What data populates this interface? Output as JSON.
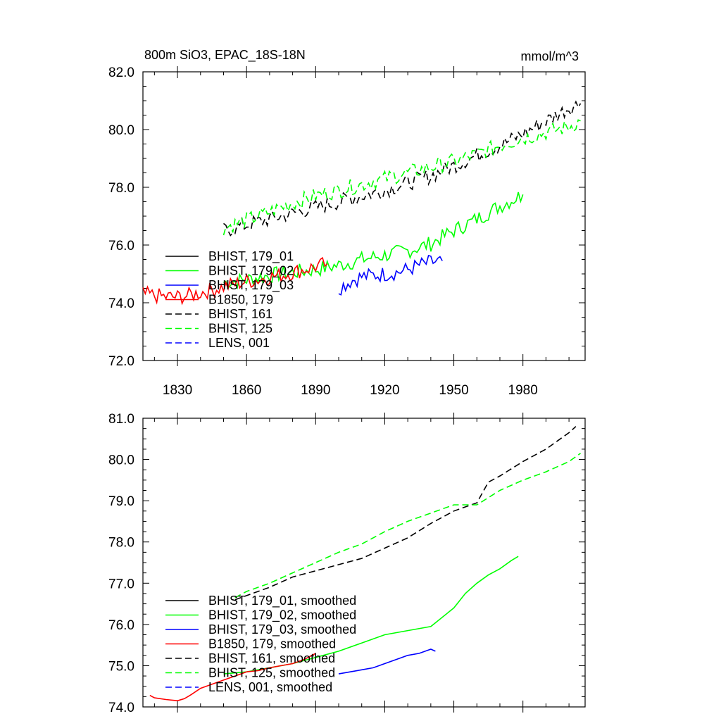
{
  "chart_data": [
    {
      "type": "line",
      "title": "800m SiO3, EPAC_18S-18N",
      "units": "mmol/m^3",
      "xlim": [
        1815,
        2007
      ],
      "ylim": [
        72,
        82
      ],
      "x_ticks": [
        1830,
        1860,
        1890,
        1920,
        1950,
        1980
      ],
      "y_ticks": [
        72,
        74,
        76,
        78,
        80,
        82
      ],
      "y_tick_labels": [
        "72.0",
        "74.0",
        "76.0",
        "78.0",
        "80.0",
        "82.0"
      ],
      "legend_position": "lower-left",
      "series": [
        {
          "name": "BHIST, 179_01",
          "color": "#000000",
          "dash": "solid",
          "x": [],
          "y": []
        },
        {
          "name": "BHIST, 179_02",
          "color": "#00ff00",
          "dash": "solid",
          "x": [
            1850,
            1860,
            1870,
            1880,
            1890,
            1900,
            1910,
            1920,
            1930,
            1940,
            1950,
            1960,
            1970,
            1980
          ],
          "y": [
            74.7,
            74.8,
            74.95,
            75.05,
            75.15,
            75.3,
            75.5,
            75.65,
            75.8,
            76.05,
            76.5,
            76.9,
            77.35,
            77.75
          ]
        },
        {
          "name": "BHIST, 179_03",
          "color": "#0000ff",
          "dash": "solid",
          "x": [
            1900,
            1905,
            1910,
            1915,
            1920,
            1925,
            1930,
            1935,
            1940,
            1945
          ],
          "y": [
            74.5,
            74.75,
            74.9,
            74.95,
            75.0,
            75.05,
            75.15,
            75.3,
            75.4,
            75.45
          ]
        },
        {
          "name": "B1850, 179",
          "color": "#ff0000",
          "dash": "solid",
          "x": [
            1815,
            1820,
            1825,
            1830,
            1835,
            1840,
            1845,
            1850,
            1855,
            1860,
            1865,
            1870,
            1875,
            1880,
            1885,
            1890,
            1895
          ],
          "y": [
            74.3,
            74.25,
            74.2,
            74.2,
            74.25,
            74.35,
            74.45,
            74.55,
            74.65,
            74.75,
            74.8,
            74.9,
            74.95,
            75.05,
            75.15,
            75.25,
            75.35
          ]
        },
        {
          "name": "BHIST, 161",
          "color": "#000000",
          "dash": "dashed",
          "x": [
            1850,
            1860,
            1870,
            1880,
            1890,
            1900,
            1910,
            1920,
            1930,
            1940,
            1950,
            1960,
            1970,
            1980,
            1990,
            2000,
            2005
          ],
          "y": [
            76.5,
            76.7,
            76.9,
            77.1,
            77.3,
            77.5,
            77.7,
            77.9,
            78.15,
            78.4,
            78.75,
            79.1,
            79.45,
            79.85,
            80.3,
            80.75,
            80.9
          ]
        },
        {
          "name": "BHIST, 125",
          "color": "#00ff00",
          "dash": "dashed",
          "x": [
            1850,
            1860,
            1870,
            1880,
            1890,
            1900,
            1910,
            1920,
            1930,
            1940,
            1950,
            1960,
            1970,
            1980,
            1990,
            2000,
            2005
          ],
          "y": [
            76.6,
            76.85,
            77.15,
            77.45,
            77.7,
            77.9,
            78.1,
            78.3,
            78.5,
            78.7,
            78.9,
            79.15,
            79.45,
            79.7,
            79.9,
            80.1,
            80.3
          ]
        },
        {
          "name": "LENS, 001",
          "color": "#0000ff",
          "dash": "dashed",
          "x": [],
          "y": []
        }
      ]
    },
    {
      "type": "line",
      "xlim": [
        1815,
        2007
      ],
      "ylim": [
        74,
        81
      ],
      "y_ticks": [
        74,
        75,
        76,
        77,
        78,
        79,
        80,
        81
      ],
      "y_tick_labels": [
        "74.0",
        "75.0",
        "76.0",
        "77.0",
        "78.0",
        "79.0",
        "80.0",
        "81.0"
      ],
      "legend_position": "lower-left",
      "series": [
        {
          "name": "BHIST, 179_01, smoothed",
          "color": "#000000",
          "dash": "solid",
          "x": [],
          "y": []
        },
        {
          "name": "BHIST, 179_02, smoothed",
          "color": "#00ff00",
          "dash": "solid",
          "x": [
            1850,
            1860,
            1870,
            1880,
            1890,
            1900,
            1910,
            1920,
            1930,
            1940,
            1950,
            1955,
            1960,
            1965,
            1970,
            1975,
            1978
          ],
          "y": [
            74.8,
            74.85,
            74.95,
            75.05,
            75.2,
            75.35,
            75.55,
            75.75,
            75.85,
            75.95,
            76.4,
            76.75,
            77.0,
            77.2,
            77.35,
            77.55,
            77.65
          ]
        },
        {
          "name": "BHIST, 179_03, smoothed",
          "color": "#0000ff",
          "dash": "solid",
          "x": [
            1900,
            1905,
            1910,
            1915,
            1920,
            1925,
            1930,
            1935,
            1940,
            1942
          ],
          "y": [
            74.8,
            74.85,
            74.9,
            74.95,
            75.05,
            75.15,
            75.25,
            75.3,
            75.4,
            75.35
          ]
        },
        {
          "name": "B1850, 179, smoothed",
          "color": "#ff0000",
          "dash": "solid",
          "x": [
            1818,
            1820,
            1825,
            1830,
            1833,
            1836,
            1840,
            1845,
            1850,
            1855,
            1860,
            1865,
            1870,
            1875,
            1880,
            1885,
            1890
          ],
          "y": [
            74.28,
            74.22,
            74.18,
            74.15,
            74.2,
            74.3,
            74.45,
            74.55,
            74.65,
            74.75,
            74.85,
            74.88,
            74.95,
            75.0,
            75.05,
            75.15,
            75.3
          ]
        },
        {
          "name": "BHIST, 161, smoothed",
          "color": "#000000",
          "dash": "dashed",
          "x": [
            1855,
            1860,
            1870,
            1880,
            1890,
            1900,
            1910,
            1920,
            1930,
            1940,
            1950,
            1960,
            1965,
            1970,
            1980,
            1990,
            2000,
            2003
          ],
          "y": [
            76.6,
            76.7,
            76.9,
            77.15,
            77.3,
            77.45,
            77.6,
            77.85,
            78.1,
            78.45,
            78.75,
            78.95,
            79.45,
            79.6,
            79.95,
            80.25,
            80.65,
            80.8
          ]
        },
        {
          "name": "BHIST, 125, smoothed",
          "color": "#00ff00",
          "dash": "dashed",
          "x": [
            1855,
            1860,
            1870,
            1880,
            1890,
            1900,
            1910,
            1920,
            1930,
            1940,
            1950,
            1960,
            1970,
            1980,
            1990,
            2000,
            2005
          ],
          "y": [
            76.65,
            76.8,
            77.0,
            77.25,
            77.5,
            77.75,
            77.95,
            78.25,
            78.5,
            78.7,
            78.9,
            78.9,
            79.25,
            79.5,
            79.7,
            79.95,
            80.15
          ]
        },
        {
          "name": "LENS, 001, smoothed",
          "color": "#0000ff",
          "dash": "dashed",
          "x": [],
          "y": []
        }
      ]
    }
  ]
}
